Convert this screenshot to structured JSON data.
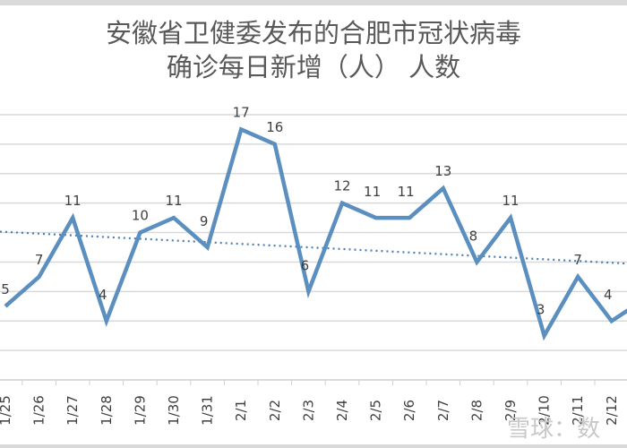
{
  "chart_data": {
    "type": "line",
    "title": "安徽省卫健委发布的合肥市冠状病毒确诊每日新增（人）人数",
    "title_lines": [
      "安徽省卫健委发布的合肥市冠状病毒",
      "确诊每日新增（人） 人数"
    ],
    "xlabel": "",
    "ylabel": "",
    "categories": [
      "1/25",
      "1/26",
      "1/27",
      "1/28",
      "1/29",
      "1/30",
      "1/31",
      "2/1",
      "2/2",
      "2/3",
      "2/4",
      "2/5",
      "2/6",
      "2/7",
      "2/8",
      "2/9",
      "2/10",
      "2/11",
      "2/12"
    ],
    "series": [
      {
        "name": "确诊每日新增（人）",
        "values": [
          5,
          7,
          11,
          4,
          10,
          11,
          9,
          17,
          16,
          6,
          12,
          11,
          11,
          13,
          8,
          11,
          3,
          7,
          4
        ],
        "color": "#5b8fbf"
      },
      {
        "name": "线性趋势线",
        "type": "trendline",
        "style": "dotted",
        "color": "#4a7fb0",
        "start_value": 10.0,
        "end_value": 7.9
      }
    ],
    "data_labels": true,
    "ylim": [
      0,
      18
    ],
    "ytick_step": 2,
    "grid": true,
    "legend": "none"
  },
  "watermark": "雪球：数",
  "colors": {
    "line": "#5b8fbf",
    "grid": "#d9d9d9",
    "label": "#404040",
    "title": "#595959"
  }
}
